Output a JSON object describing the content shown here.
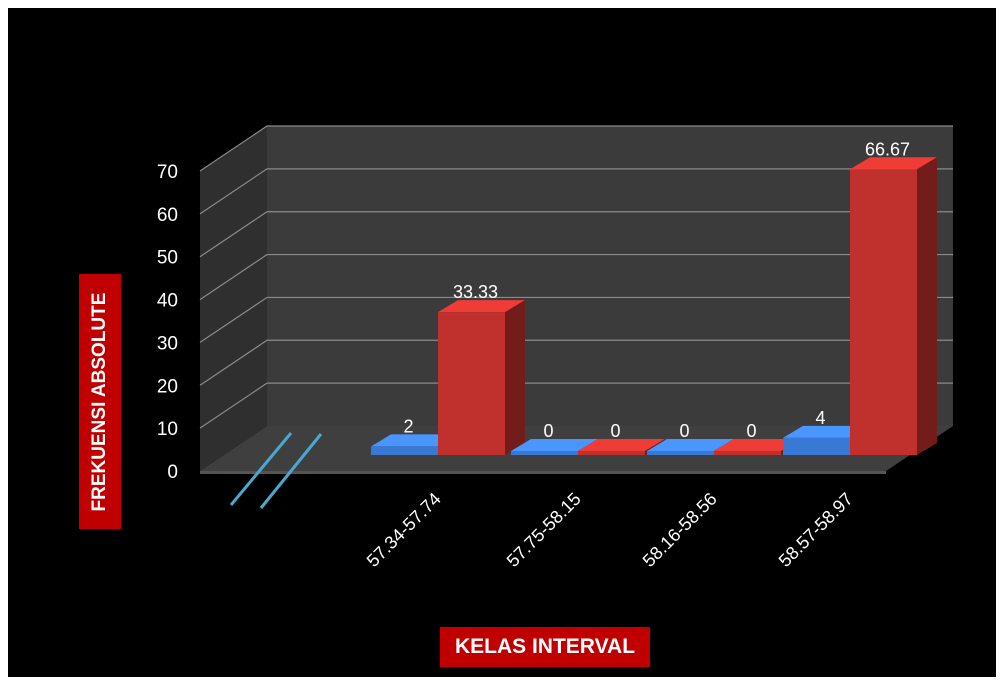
{
  "chart_data": {
    "type": "bar",
    "categories": [
      "57.34-57.74",
      "57.75-58.15",
      "58.16-58.56",
      "58.57-58.97"
    ],
    "series": [
      {
        "values": [
          2,
          0,
          0,
          4
        ],
        "color": "#3a78d6"
      },
      {
        "values": [
          33.33,
          0,
          0,
          66.67
        ],
        "color": "#c0302c"
      }
    ],
    "data_labels": [
      [
        "2",
        "0",
        "0",
        "4"
      ],
      [
        "33.33",
        "0",
        "0",
        "66.67"
      ]
    ],
    "yticks": [
      "0",
      "10",
      "20",
      "30",
      "40",
      "50",
      "60",
      "70"
    ],
    "ylim": [
      0,
      70
    ],
    "xlabel": "KELAS INTERVAL",
    "ylabel": "FREKUENSI ABSOLUTE",
    "grid": true,
    "style": "3d",
    "axis_break": true
  }
}
